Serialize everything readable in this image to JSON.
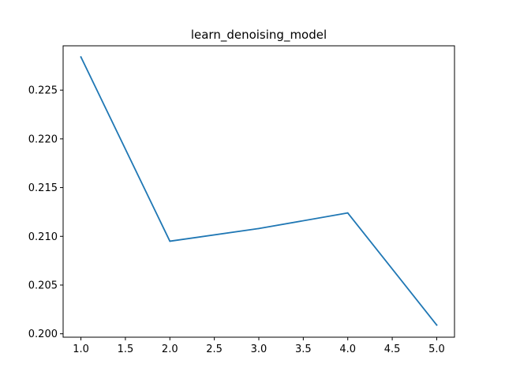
{
  "chart_data": {
    "type": "line",
    "title": "learn_denoising_model",
    "xlabel": "",
    "ylabel": "",
    "x": [
      1.0,
      2.0,
      3.0,
      4.0,
      5.0
    ],
    "series": [
      {
        "values": [
          0.2284,
          0.2095,
          0.2108,
          0.2124,
          0.2009
        ],
        "color": "#1f77b4"
      }
    ],
    "xlim": [
      0.8,
      5.2
    ],
    "ylim": [
      0.19965,
      0.22955
    ],
    "xticks": [
      1.0,
      1.5,
      2.0,
      2.5,
      3.0,
      3.5,
      4.0,
      4.5,
      5.0
    ],
    "xtick_labels": [
      "1.0",
      "1.5",
      "2.0",
      "2.5",
      "3.0",
      "3.5",
      "4.0",
      "4.5",
      "5.0"
    ],
    "yticks": [
      0.2,
      0.205,
      0.21,
      0.215,
      0.22,
      0.225
    ],
    "ytick_labels": [
      "0.200",
      "0.205",
      "0.210",
      "0.215",
      "0.220",
      "0.225"
    ],
    "grid": false,
    "legend": "none"
  }
}
